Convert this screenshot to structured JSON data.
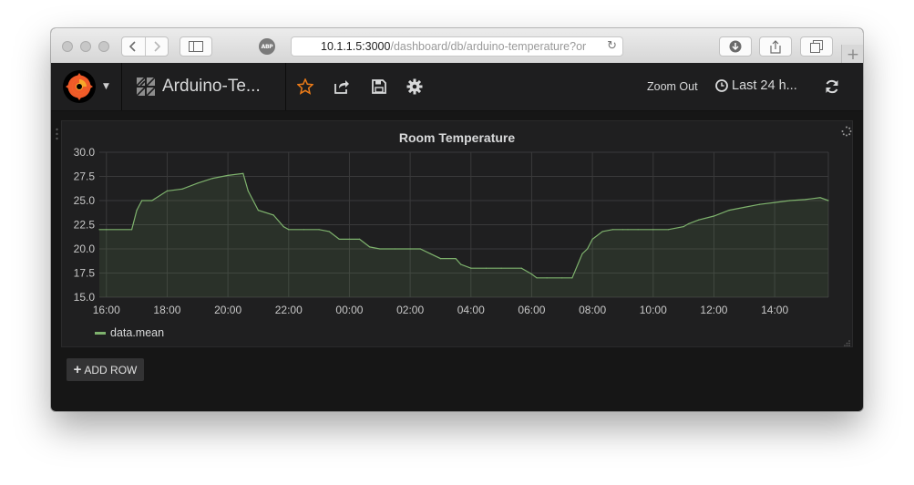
{
  "browser": {
    "url_host": "10.1.1.5:3000",
    "url_path": "/dashboard/db/arduino-temperature?or",
    "adblock_label": "ABP"
  },
  "navbar": {
    "dashboard_title": "Arduino-Te...",
    "zoom_out_label": "Zoom Out",
    "time_range_label": "Last 24 h..."
  },
  "panel": {
    "add_row_label": "ADD ROW"
  },
  "colors": {
    "series": "#7eb26d",
    "panel_bg": "#1f1f20",
    "grid": "#3a3a3b",
    "accent_star": "#eb7b18"
  },
  "icons": {
    "star": "star-icon",
    "share": "share-icon",
    "save": "save-icon",
    "settings": "gear-icon",
    "time": "clock-icon",
    "refresh": "refresh-icon"
  },
  "chart_data": {
    "type": "area",
    "title": "Room Temperature",
    "xlabel": "",
    "ylabel": "",
    "x_ticks": [
      "16:00",
      "18:00",
      "20:00",
      "22:00",
      "00:00",
      "02:00",
      "04:00",
      "06:00",
      "08:00",
      "10:00",
      "12:00",
      "14:00"
    ],
    "y_ticks": [
      "15.0",
      "17.5",
      "20.0",
      "22.5",
      "25.0",
      "27.5",
      "30.0"
    ],
    "ylim": [
      15,
      30
    ],
    "xlim": [
      "15:46",
      "15:46+24h"
    ],
    "grid": true,
    "legend_position": "bottom-left",
    "series": [
      {
        "name": "data.mean",
        "x": [
          "15:46",
          "16:00",
          "16:50",
          "17:00",
          "17:10",
          "17:30",
          "18:00",
          "18:30",
          "19:00",
          "19:30",
          "20:00",
          "20:30",
          "20:40",
          "21:00",
          "21:30",
          "21:50",
          "22:00",
          "22:30",
          "23:00",
          "23:20",
          "23:40",
          "00:00",
          "00:20",
          "00:40",
          "01:00",
          "01:30",
          "02:00",
          "02:20",
          "02:40",
          "03:00",
          "03:30",
          "03:40",
          "04:00",
          "04:30",
          "05:00",
          "05:40",
          "06:00",
          "06:10",
          "06:30",
          "07:00",
          "07:20",
          "07:40",
          "07:50",
          "08:00",
          "08:20",
          "08:40",
          "09:00",
          "09:10",
          "09:30",
          "10:00",
          "10:30",
          "11:00",
          "11:10",
          "11:30",
          "12:00",
          "12:30",
          "13:00",
          "13:30",
          "14:00",
          "14:30",
          "15:00",
          "15:30",
          "15:46"
        ],
        "values": [
          22,
          22,
          22,
          24,
          25,
          25,
          26,
          26.2,
          26.8,
          27.3,
          27.6,
          27.8,
          26,
          24,
          23.5,
          22.3,
          22,
          22,
          22,
          21.8,
          21,
          21,
          21,
          20.2,
          20,
          20,
          20,
          20,
          19.5,
          19,
          19,
          18.4,
          18,
          18,
          18,
          18,
          17.4,
          17,
          17,
          17,
          17,
          19.5,
          20,
          21,
          21.8,
          22,
          22,
          22,
          22,
          22,
          22,
          22.3,
          22.6,
          23,
          23.4,
          24,
          24.3,
          24.6,
          24.8,
          25,
          25.1,
          25.3,
          25
        ]
      }
    ]
  }
}
